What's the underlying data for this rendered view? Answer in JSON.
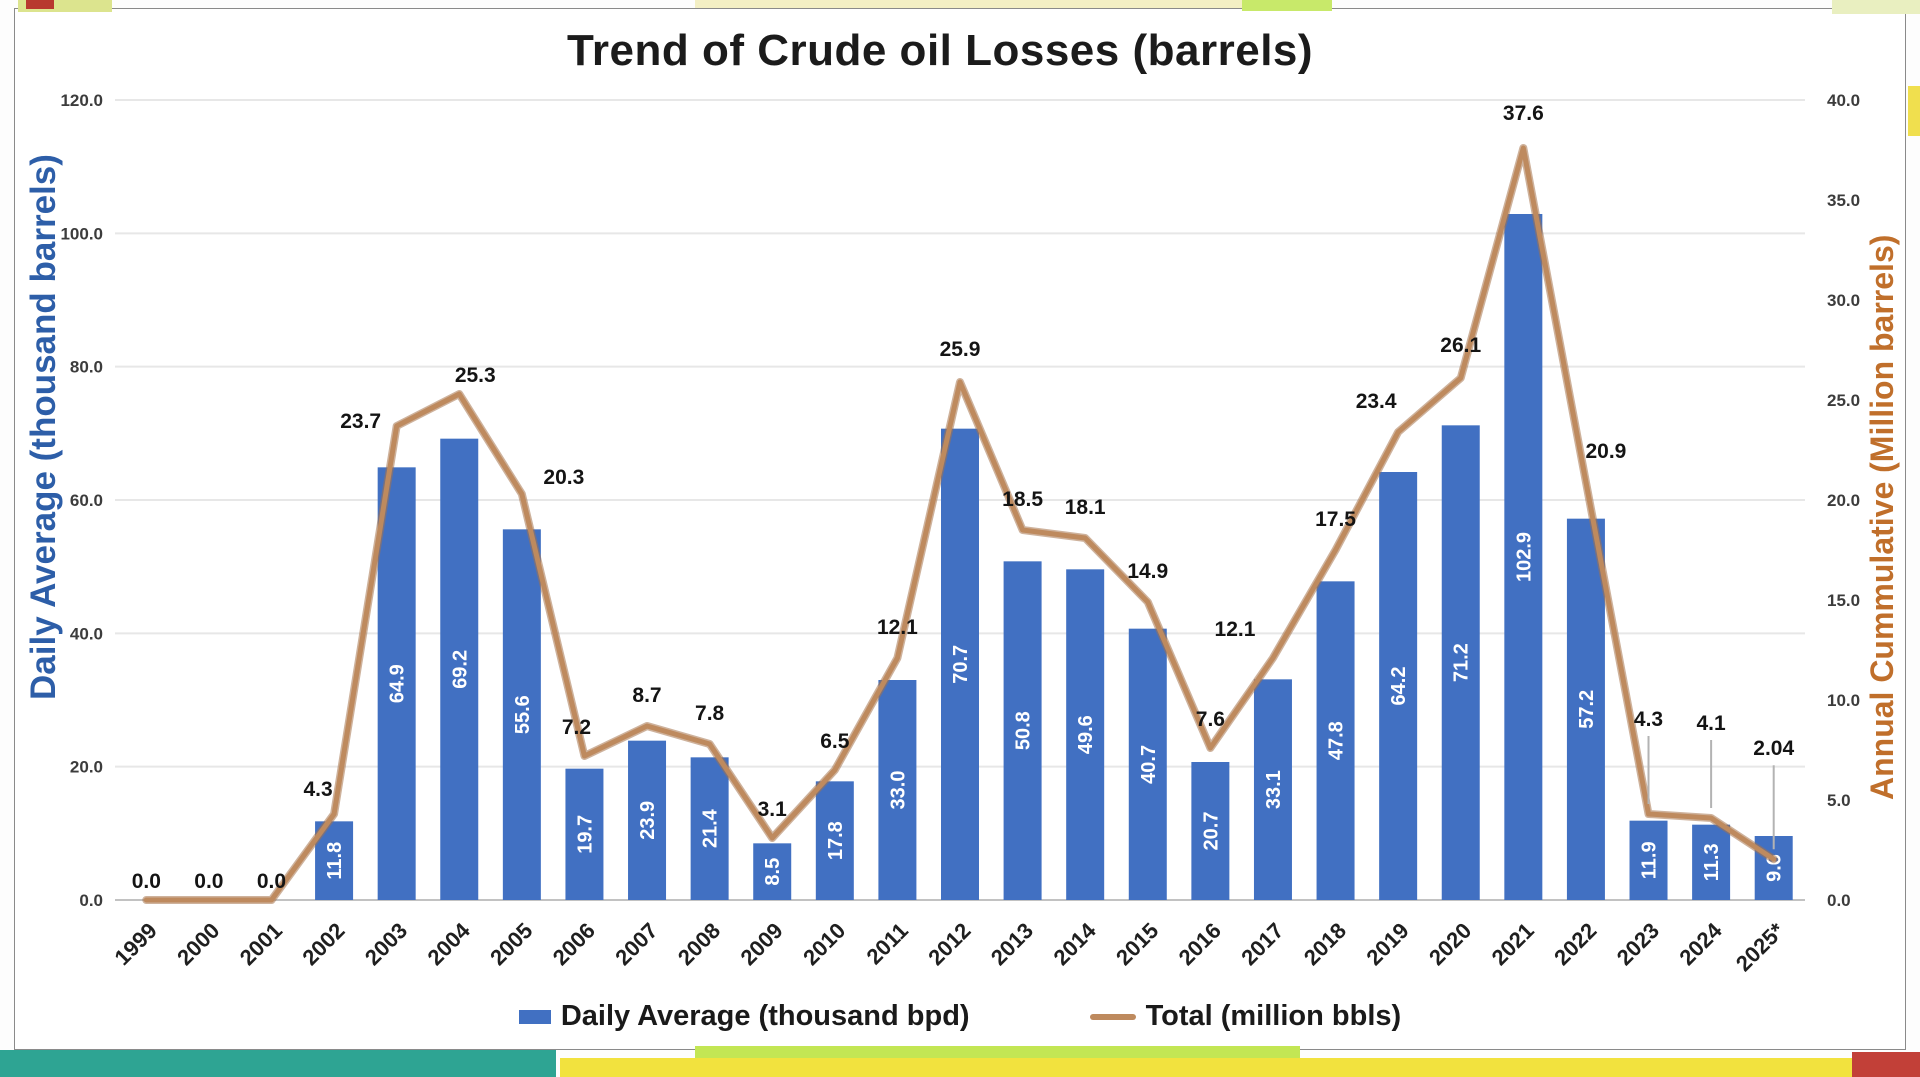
{
  "chart_data": {
    "type": "bar-line-combo",
    "title": "Trend of Crude oil Losses (barrels)",
    "categories": [
      "1999",
      "2000",
      "2001",
      "2002",
      "2003",
      "2004",
      "2005",
      "2006",
      "2007",
      "2008",
      "2009",
      "2010",
      "2011",
      "2012",
      "2013",
      "2014",
      "2015",
      "2016",
      "2017",
      "2018",
      "2019",
      "2020",
      "2021",
      "2022",
      "2023",
      "2024",
      "2025*"
    ],
    "series": [
      {
        "name": "Daily Average (thousand bpd)",
        "type": "bar",
        "axis": "left",
        "color": "#4170c2",
        "values": [
          0,
          0,
          0,
          11.8,
          64.9,
          69.2,
          55.6,
          19.7,
          23.9,
          21.4,
          8.5,
          17.8,
          33.0,
          70.7,
          50.8,
          49.6,
          40.7,
          20.7,
          33.1,
          47.8,
          64.2,
          71.2,
          102.9,
          57.2,
          11.9,
          11.3,
          9.6
        ],
        "data_labels": [
          "",
          "",
          "",
          "11.8",
          "64.9",
          "69.2",
          "55.6",
          "19.7",
          "23.9",
          "21.4",
          "8.5",
          "17.8",
          "33.0",
          "70.7",
          "50.8",
          "49.6",
          "40.7",
          "20.7",
          "33.1",
          "47.8",
          "64.2",
          "71.2",
          "102.9",
          "57.2",
          "11.9",
          "11.3",
          "9.6"
        ]
      },
      {
        "name": "Total (million bbls)",
        "type": "line",
        "axis": "right",
        "color": "#be8a5e",
        "values": [
          0,
          0,
          0,
          4.3,
          23.7,
          25.3,
          20.3,
          7.2,
          8.7,
          7.8,
          3.1,
          6.5,
          12.1,
          25.9,
          18.5,
          18.1,
          14.9,
          7.6,
          12.1,
          17.5,
          23.4,
          26.1,
          37.6,
          20.9,
          4.3,
          4.1,
          2.04
        ],
        "data_labels": [
          "0.0",
          "0.0",
          "0.0",
          "4.3",
          "23.7",
          "25.3",
          "20.3",
          "7.2",
          "8.7",
          "7.8",
          "3.1",
          "6.5",
          "12.1",
          "25.9",
          "18.5",
          "18.1",
          "14.9",
          "7.6",
          "12.1",
          "17.5",
          "23.4",
          "26.1",
          "37.6",
          "20.9",
          "4.3",
          "4.1",
          "2.04"
        ]
      }
    ],
    "left_axis": {
      "title": "Daily Average (thousand barrels)",
      "min": 0,
      "max": 120,
      "tick_labels": [
        "120.0",
        "100.0",
        "80.0",
        "60.0",
        "40.0",
        "20.0",
        "0.0"
      ],
      "title_color": "#2d5ea8"
    },
    "right_axis": {
      "title": "Annual Cummulative (Million barrels)",
      "min": 0,
      "max": 40,
      "tick_labels": [
        "40.0",
        "35.0",
        "30.0",
        "25.0",
        "20.0",
        "15.0",
        "10.0",
        "5.0",
        "0.0"
      ],
      "title_color": "#c06f2b"
    },
    "grid": true,
    "legend_position": "bottom"
  }
}
